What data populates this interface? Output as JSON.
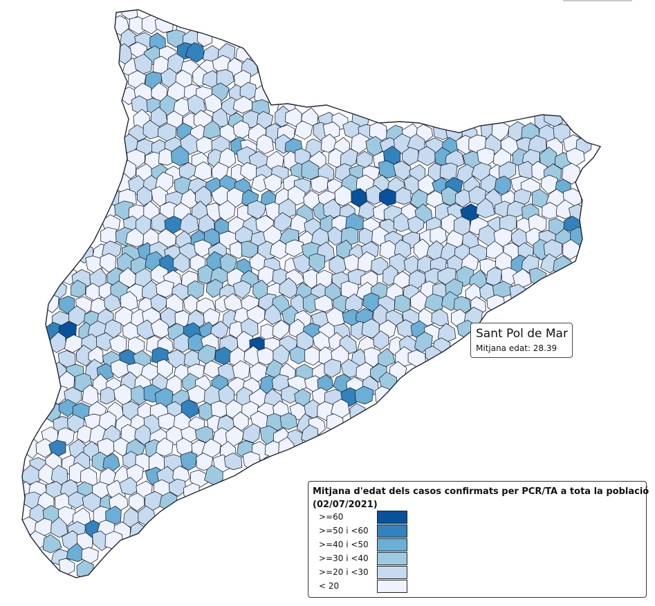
{
  "map": {
    "region": "Catalunya",
    "mode": "choropleth"
  },
  "tooltip": {
    "municipality": "Sant Pol de Mar",
    "metric_label": "Mitjana edat:",
    "metric_value": "28.39"
  },
  "legend": {
    "title_line1": "Mitjana d'edat dels casos confirmats per PCR/TA a tota la població",
    "title_line2": "(02/07/2021)",
    "classes": [
      {
        "label": ">=60",
        "color": "#08519c"
      },
      {
        "label": ">=50 i <60",
        "color": "#3182bd"
      },
      {
        "label": ">=40 i <50",
        "color": "#6baed6"
      },
      {
        "label": ">=30 i <40",
        "color": "#9ecae1"
      },
      {
        "label": ">=20 i <30",
        "color": "#c6dbef"
      },
      {
        "label": "< 20",
        "color": "#eff3ff"
      }
    ]
  }
}
